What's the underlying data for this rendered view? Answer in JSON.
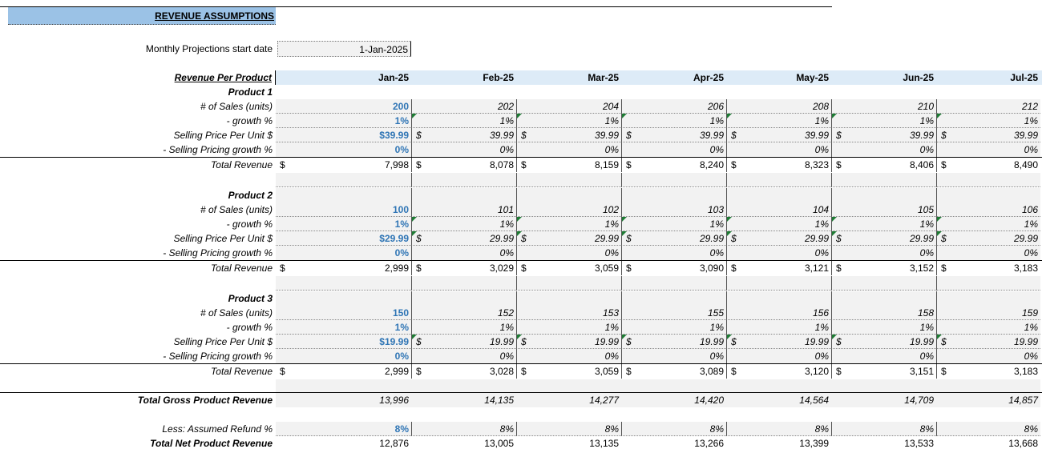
{
  "title": "REVENUE ASSUMPTIONS",
  "start_date_label": "Monthly Projections  start date",
  "start_date_value": "1-Jan-2025",
  "header": {
    "label": "Revenue Per Product",
    "months": [
      "Jan-25",
      "Feb-25",
      "Mar-25",
      "Apr-25",
      "May-25",
      "Jun-25",
      "Jul-25"
    ]
  },
  "labels": {
    "sales": "# of Sales (units)",
    "growth": "- growth %",
    "price": "Selling Price Per Unit $",
    "price_growth": "- Selling Pricing growth %",
    "total": "Total Revenue",
    "currency": "$"
  },
  "products": [
    {
      "name": "Product 1",
      "sales": [
        "200",
        "202",
        "204",
        "206",
        "208",
        "210",
        "212"
      ],
      "growth": [
        "1%",
        "1%",
        "1%",
        "1%",
        "1%",
        "1%",
        "1%"
      ],
      "price": [
        "$39.99",
        "39.99",
        "39.99",
        "39.99",
        "39.99",
        "39.99",
        "39.99"
      ],
      "price_growth": [
        "0%",
        "0%",
        "0%",
        "0%",
        "0%",
        "0%",
        "0%"
      ],
      "total": [
        "7,998",
        "8,078",
        "8,159",
        "8,240",
        "8,323",
        "8,406",
        "8,490"
      ]
    },
    {
      "name": "Product 2",
      "sales": [
        "100",
        "101",
        "102",
        "103",
        "104",
        "105",
        "106"
      ],
      "growth": [
        "1%",
        "1%",
        "1%",
        "1%",
        "1%",
        "1%",
        "1%"
      ],
      "price": [
        "$29.99",
        "29.99",
        "29.99",
        "29.99",
        "29.99",
        "29.99",
        "29.99"
      ],
      "price_growth": [
        "0%",
        "0%",
        "0%",
        "0%",
        "0%",
        "0%",
        "0%"
      ],
      "total": [
        "2,999",
        "3,029",
        "3,059",
        "3,090",
        "3,121",
        "3,152",
        "3,183"
      ]
    },
    {
      "name": "Product 3",
      "sales": [
        "150",
        "152",
        "153",
        "155",
        "156",
        "158",
        "159"
      ],
      "growth": [
        "1%",
        "1%",
        "1%",
        "1%",
        "1%",
        "1%",
        "1%"
      ],
      "price": [
        "$19.99",
        "19.99",
        "19.99",
        "19.99",
        "19.99",
        "19.99",
        "19.99"
      ],
      "price_growth": [
        "0%",
        "0%",
        "0%",
        "0%",
        "0%",
        "0%",
        "0%"
      ],
      "total": [
        "2,999",
        "3,028",
        "3,059",
        "3,089",
        "3,120",
        "3,151",
        "3,183"
      ]
    }
  ],
  "gross": {
    "label": "Total Gross Product Revenue",
    "values": [
      "13,996",
      "14,135",
      "14,277",
      "14,420",
      "14,564",
      "14,709",
      "14,857"
    ]
  },
  "refund": {
    "label": "Less: Assumed Refund %",
    "values": [
      "8%",
      "8%",
      "8%",
      "8%",
      "8%",
      "8%",
      "8%"
    ]
  },
  "net": {
    "label": "Total Net Product Revenue",
    "values": [
      "12,876",
      "13,005",
      "13,135",
      "13,266",
      "13,399",
      "13,533",
      "13,668"
    ]
  }
}
